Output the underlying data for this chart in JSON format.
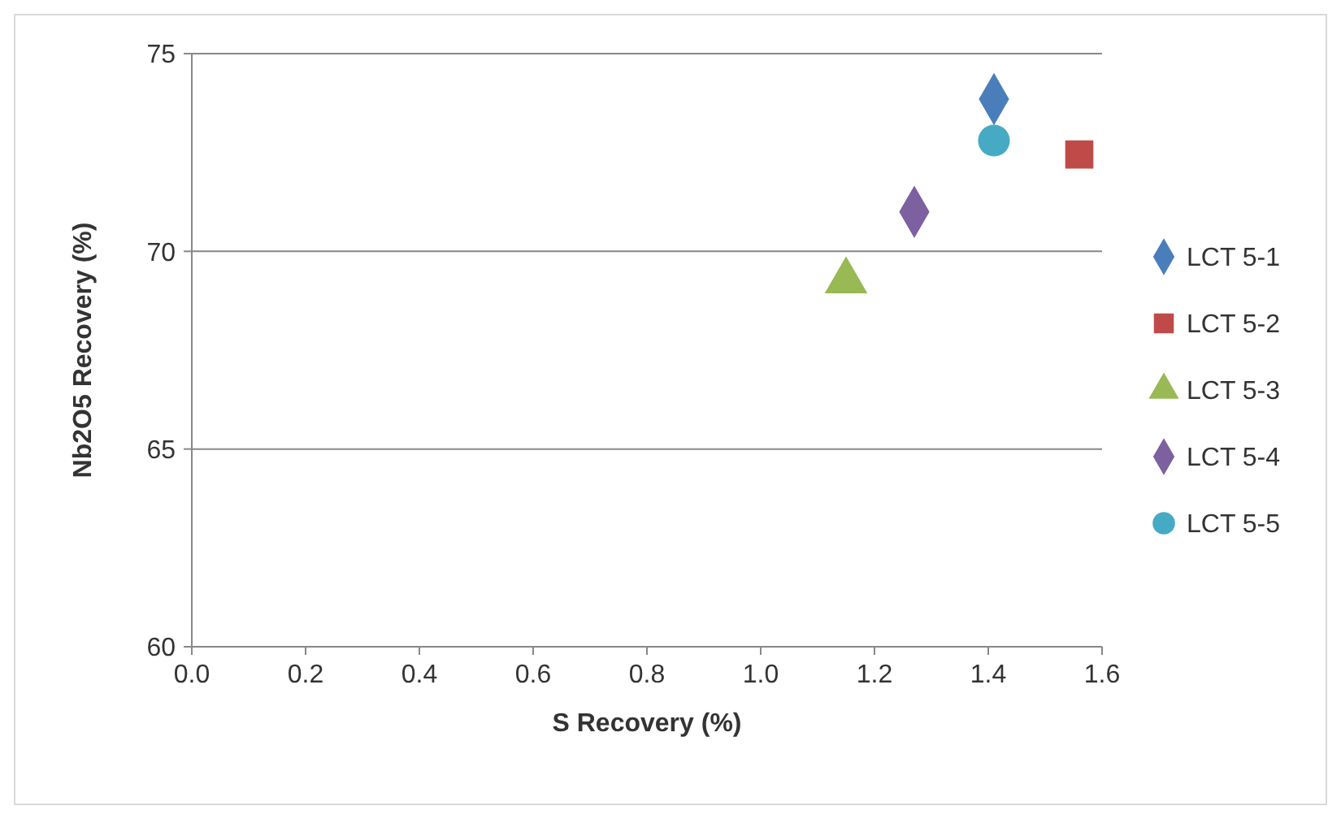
{
  "chart_data": {
    "type": "scatter",
    "xlabel": "S Recovery (%)",
    "ylabel": "Nb2O5 Recovery (%)",
    "xlim": [
      0,
      1.6
    ],
    "xticks": [
      {
        "value": 0,
        "label": "0.0"
      },
      {
        "value": 0.2,
        "label": "0.2"
      },
      {
        "value": 0.4,
        "label": "0.4"
      },
      {
        "value": 0.6,
        "label": "0.6"
      },
      {
        "value": 0.8,
        "label": "0.8"
      },
      {
        "value": 1,
        "label": "1.0"
      },
      {
        "value": 1.2,
        "label": "1.2"
      },
      {
        "value": 1.4,
        "label": "1.4"
      },
      {
        "value": 1.6,
        "label": "1.6"
      }
    ],
    "ylim": [
      60,
      75
    ],
    "yticks": [
      60,
      65,
      70,
      75
    ],
    "grid": "y",
    "legend": "right",
    "series": [
      {
        "name": "LCT 5-1",
        "color": "#4a7ebb",
        "marker": "diamond",
        "x": [
          1.41
        ],
        "values": [
          73.85
        ]
      },
      {
        "name": "LCT 5-2",
        "color": "#be4b48",
        "marker": "square",
        "x": [
          1.56
        ],
        "values": [
          72.45
        ]
      },
      {
        "name": "LCT 5-3",
        "color": "#98b954",
        "marker": "triangle",
        "x": [
          1.15
        ],
        "values": [
          69.25
        ]
      },
      {
        "name": "LCT 5-4",
        "color": "#7d60a0",
        "marker": "diamond",
        "x": [
          1.27
        ],
        "values": [
          71.0
        ]
      },
      {
        "name": "LCT 5-5",
        "color": "#46aac5",
        "marker": "circle",
        "x": [
          1.41
        ],
        "values": [
          72.8
        ]
      }
    ]
  }
}
